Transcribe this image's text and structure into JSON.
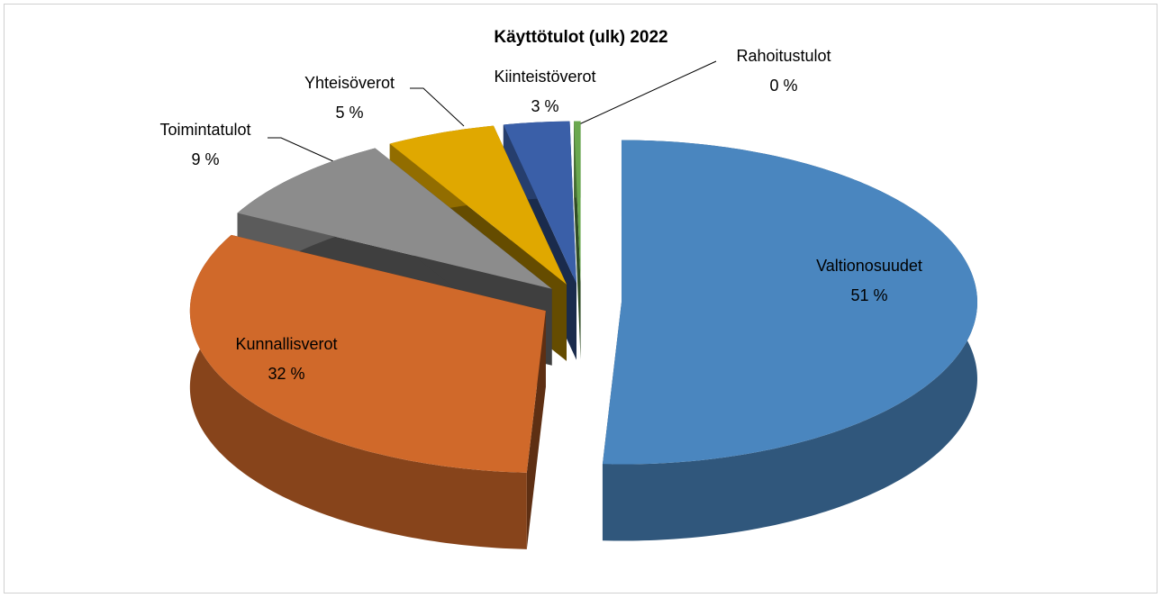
{
  "chart_data": {
    "type": "pie3d",
    "title": "Käyttötulot (ulk) 2022",
    "categories": [
      "Valtionosuudet",
      "Kunnallisverot",
      "Toimintatulot",
      "Yhteisöverot",
      "Kiinteistöverot",
      "Rahoitustulot"
    ],
    "values": [
      51,
      32,
      9,
      5,
      3,
      0.3
    ],
    "value_labels": [
      "51 %",
      "32 %",
      "9 %",
      "5 %",
      "3 %",
      "0 %"
    ],
    "colors": [
      "#4a86bf",
      "#d0692a",
      "#8c8c8c",
      "#e0a800",
      "#3a5fa8",
      "#6aa84f"
    ]
  }
}
